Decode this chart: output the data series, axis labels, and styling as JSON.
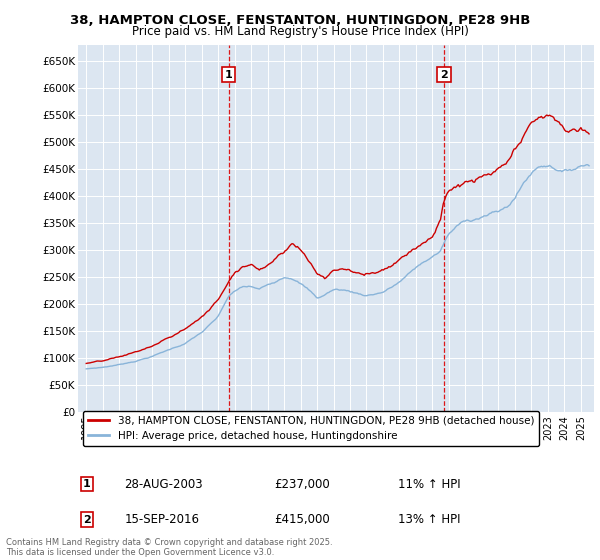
{
  "title_line1": "38, HAMPTON CLOSE, FENSTANTON, HUNTINGDON, PE28 9HB",
  "title_line2": "Price paid vs. HM Land Registry's House Price Index (HPI)",
  "bg_color": "#dce6f1",
  "grid_color": "#ffffff",
  "sale1_date_x": 2003.65,
  "sale2_date_x": 2016.71,
  "sale1_price": 237000,
  "sale2_price": 415000,
  "ylim": [
    0,
    680000
  ],
  "xlim": [
    1994.5,
    2025.8
  ],
  "yticks": [
    0,
    50000,
    100000,
    150000,
    200000,
    250000,
    300000,
    350000,
    400000,
    450000,
    500000,
    550000,
    600000,
    650000
  ],
  "ytick_labels": [
    "£0",
    "£50K",
    "£100K",
    "£150K",
    "£200K",
    "£250K",
    "£300K",
    "£350K",
    "£400K",
    "£450K",
    "£500K",
    "£550K",
    "£600K",
    "£650K"
  ],
  "legend_label1": "38, HAMPTON CLOSE, FENSTANTON, HUNTINGDON, PE28 9HB (detached house)",
  "legend_label2": "HPI: Average price, detached house, Huntingdonshire",
  "footer_line1": "Contains HM Land Registry data © Crown copyright and database right 2025.",
  "footer_line2": "This data is licensed under the Open Government Licence v3.0.",
  "sale1_label": "1",
  "sale2_label": "2",
  "annotation1_date": "28-AUG-2003",
  "annotation1_price": "£237,000",
  "annotation1_hpi": "11% ↑ HPI",
  "annotation2_date": "15-SEP-2016",
  "annotation2_price": "£415,000",
  "annotation2_hpi": "13% ↑ HPI",
  "line_color_red": "#cc0000",
  "line_color_blue": "#89b4d9"
}
